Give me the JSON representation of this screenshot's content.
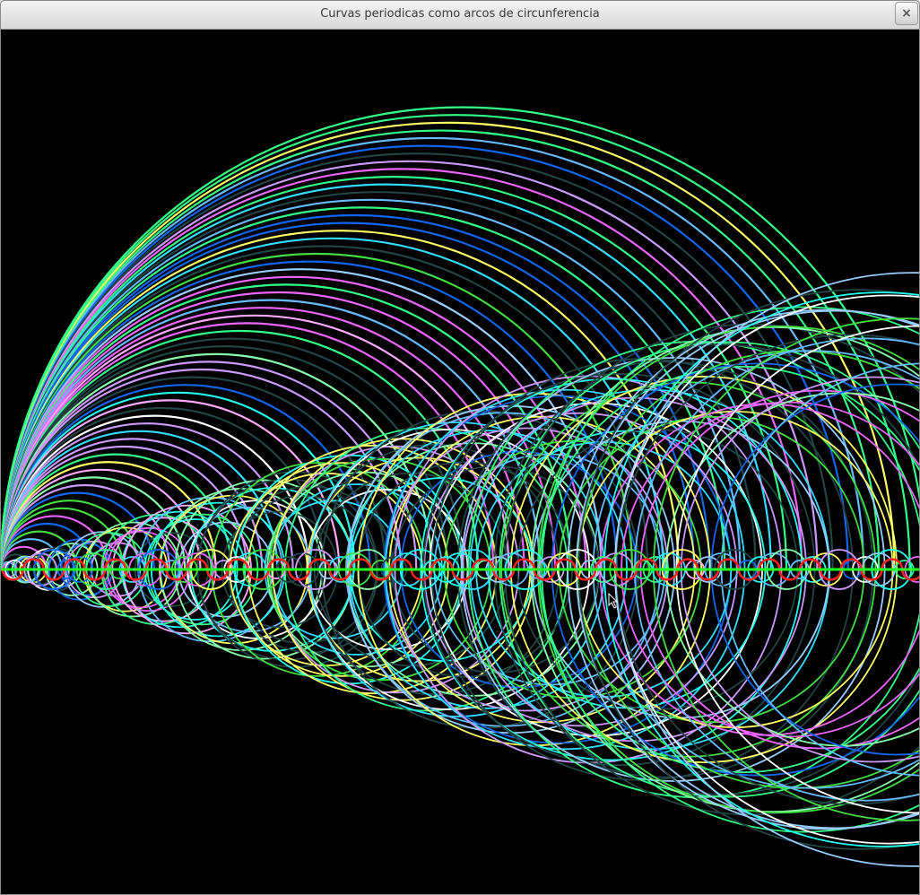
{
  "window": {
    "title": "Curvas periodicas como arcos de circunferencia",
    "close_label": "×"
  },
  "scene": {
    "background": "#000000",
    "axis_color": "#22ff22",
    "curve_color": "#ff2020",
    "palette": [
      "#33ddff",
      "#22ffee",
      "#66bbff",
      "#ffff66",
      "#ee66ff",
      "#33ff88",
      "#ffffff",
      "#1166ee",
      "#88ffaa",
      "#cc99ff",
      "#44dd44",
      "#ffaaff",
      "#224444",
      "#99ccff"
    ]
  }
}
